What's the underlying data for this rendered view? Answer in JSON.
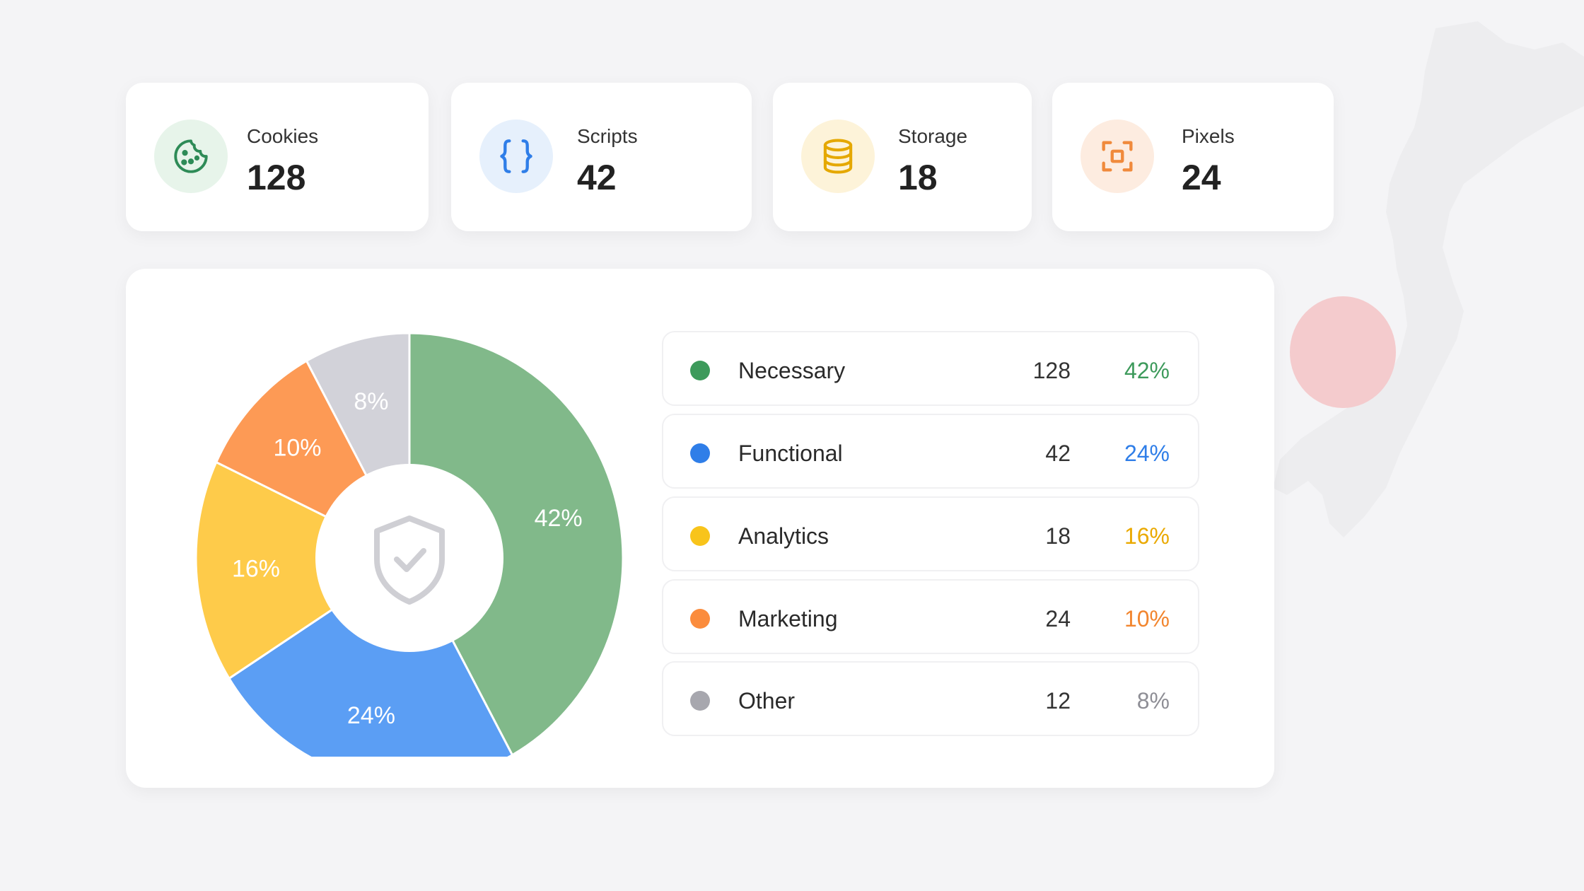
{
  "stats": [
    {
      "label": "Cookies",
      "value": "128",
      "icon": "cookie-icon",
      "color": "#2e8b57",
      "bg": "#e7f4ea"
    },
    {
      "label": "Scripts",
      "value": "42",
      "icon": "code-braces-icon",
      "color": "#2f7ee8",
      "bg": "#e6f0fc"
    },
    {
      "label": "Storage",
      "value": "18",
      "icon": "database-icon",
      "color": "#e5a800",
      "bg": "#fdf3d9"
    },
    {
      "label": "Pixels",
      "value": "24",
      "icon": "pixel-target-icon",
      "color": "#f08a3c",
      "bg": "#fdece0"
    }
  ],
  "center_icon": "shield-check-icon",
  "chart_data": {
    "type": "pie",
    "categories": [
      "Necessary",
      "Functional",
      "Analytics",
      "Marketing",
      "Other"
    ],
    "values": [
      42,
      24,
      16,
      10,
      8
    ],
    "labels": [
      "42%",
      "24%",
      "16%",
      "10%",
      "8%"
    ],
    "colors": [
      "#81b98a",
      "#5b9ef4",
      "#fecb4a",
      "#fd9a55",
      "#d2d2d9"
    ]
  },
  "legend": [
    {
      "name": "Necessary",
      "count": "128",
      "pct": "42%",
      "dot": "#3d9a5b",
      "pct_color": "#3d9a5b"
    },
    {
      "name": "Functional",
      "count": "42",
      "pct": "24%",
      "dot": "#2f7ee8",
      "pct_color": "#2f7ee8"
    },
    {
      "name": "Analytics",
      "count": "18",
      "pct": "16%",
      "dot": "#f8c41b",
      "pct_color": "#eaa900"
    },
    {
      "name": "Marketing",
      "count": "24",
      "pct": "10%",
      "dot": "#fb8c3d",
      "pct_color": "#f2852e"
    },
    {
      "name": "Other",
      "count": "12",
      "pct": "8%",
      "dot": "#a7a7ae",
      "pct_color": "#8e8e95"
    }
  ]
}
